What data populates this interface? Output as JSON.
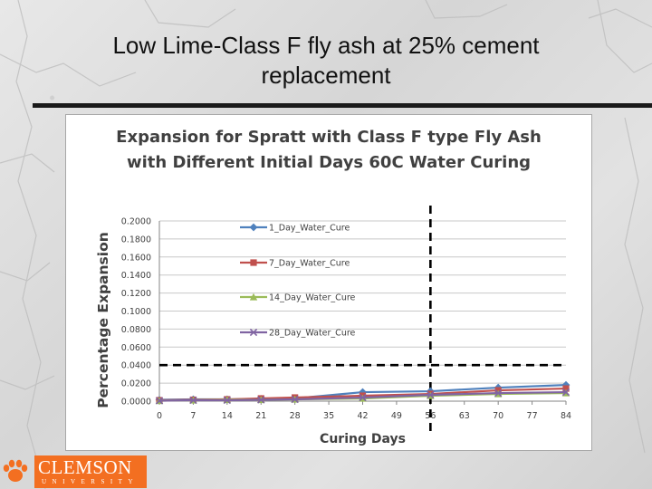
{
  "slide": {
    "title": "Low Lime-Class F fly ash at 25% cement replacement"
  },
  "logo": {
    "main_text": "CLEMSON",
    "sub_text": "UNIVERSITY",
    "color": "#f36f21"
  },
  "chart_data": {
    "type": "line",
    "title_lines": [
      "Expansion for  Spratt with Class F type Fly Ash",
      "with Different  Initial Days 60C Water Curing"
    ],
    "xlabel": "Curing Days",
    "ylabel": "Percentage Expansion",
    "x": [
      0,
      7,
      14,
      21,
      28,
      42,
      56,
      70,
      84
    ],
    "x_ticks": [
      "0",
      "7",
      "14",
      "21",
      "28",
      "35",
      "42",
      "49",
      "56",
      "63",
      "70",
      "77",
      "84"
    ],
    "y_ticks": [
      "0.0000",
      "0.0200",
      "0.0400",
      "0.0600",
      "0.0800",
      "0.1000",
      "0.1200",
      "0.1400",
      "0.1600",
      "0.1800",
      "0.2000"
    ],
    "xlim": [
      0,
      84
    ],
    "ylim": [
      0,
      0.2
    ],
    "grid": true,
    "legend_position": "inside-top-center",
    "series": [
      {
        "name": "1_Day_Water_Cure",
        "color": "#4f81bd",
        "marker": "diamond",
        "values": [
          0.0015,
          0.002,
          0.002,
          0.0025,
          0.003,
          0.01,
          0.011,
          0.015,
          0.018
        ]
      },
      {
        "name": "7_Day_Water_Cure",
        "color": "#c0504d",
        "marker": "square",
        "values": [
          0.001,
          0.0015,
          0.002,
          0.003,
          0.004,
          0.006,
          0.008,
          0.012,
          0.014
        ]
      },
      {
        "name": "14_Day_Water_Cure",
        "color": "#9bbb59",
        "marker": "triangle",
        "values": [
          0.0005,
          0.001,
          0.0015,
          0.0015,
          0.002,
          0.003,
          0.006,
          0.008,
          0.009
        ]
      },
      {
        "name": "28_Day_Water_Cure",
        "color": "#8064a2",
        "marker": "x",
        "values": [
          0.0005,
          0.001,
          0.001,
          0.0015,
          0.002,
          0.004,
          0.007,
          0.009,
          0.01
        ]
      }
    ],
    "reference_lines": [
      {
        "orientation": "horizontal",
        "y": 0.04,
        "style": "dashed",
        "color": "#000000"
      },
      {
        "orientation": "vertical",
        "x": 56,
        "style": "dashed",
        "color": "#000000"
      }
    ]
  }
}
